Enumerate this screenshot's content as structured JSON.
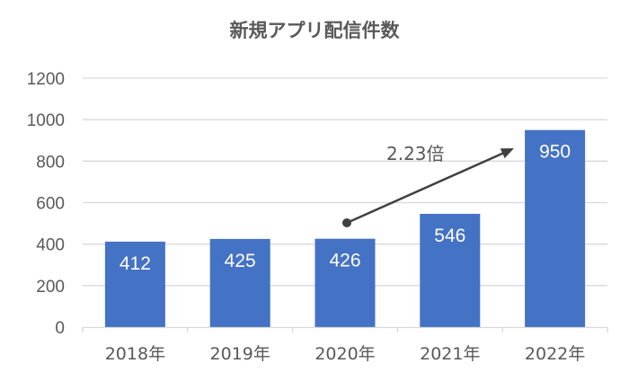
{
  "chart_data": {
    "type": "bar",
    "title": "新規アプリ配信件数",
    "categories": [
      "2018年",
      "2019年",
      "2020年",
      "2021年",
      "2022年"
    ],
    "values": [
      412,
      425,
      426,
      546,
      950
    ],
    "data_labels": [
      "412",
      "425",
      "426",
      "546",
      "950"
    ],
    "xlabel": "",
    "ylabel": "",
    "ylim": [
      0,
      1200
    ],
    "yticks": [
      0,
      200,
      400,
      600,
      800,
      1000,
      1200
    ],
    "grid": true,
    "legend": null,
    "annotations": [
      {
        "type": "arrow",
        "from_category": "2020年",
        "to_category": "2022年",
        "text": "2.23倍"
      }
    ]
  },
  "colors": {
    "bar": "#4472C4",
    "grid": "#D9D9D9",
    "text": "#595959",
    "arrow": "#404040"
  }
}
